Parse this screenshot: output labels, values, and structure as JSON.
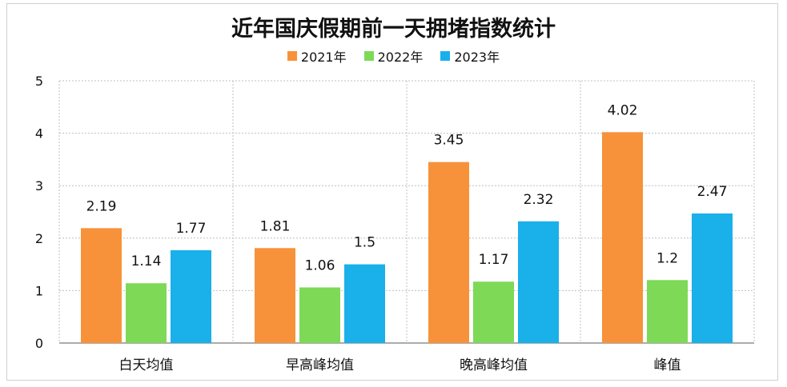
{
  "chart_data": {
    "type": "bar",
    "title": "近年国庆假期前一天拥堵指数统计",
    "categories": [
      "白天均值",
      "早高峰均值",
      "晚高峰均值",
      "峰值"
    ],
    "series": [
      {
        "name": "2021年",
        "color": "#f7923a",
        "values": [
          2.19,
          1.81,
          3.45,
          4.02
        ],
        "labels": [
          "2.19",
          "1.81",
          "3.45",
          "4.02"
        ]
      },
      {
        "name": "2022年",
        "color": "#7ed957",
        "values": [
          1.14,
          1.06,
          1.17,
          1.2
        ],
        "labels": [
          "1.14",
          "1.06",
          "1.17",
          "1.2"
        ]
      },
      {
        "name": "2023年",
        "color": "#1ab0ea",
        "values": [
          1.77,
          1.5,
          2.32,
          2.47
        ],
        "labels": [
          "1.77",
          "1.5",
          "2.32",
          "2.47"
        ]
      }
    ],
    "ylim": [
      0,
      5
    ],
    "yticks": [
      "0",
      "1",
      "2",
      "3",
      "4",
      "5"
    ],
    "grid": true,
    "legend_position": "top-center"
  }
}
